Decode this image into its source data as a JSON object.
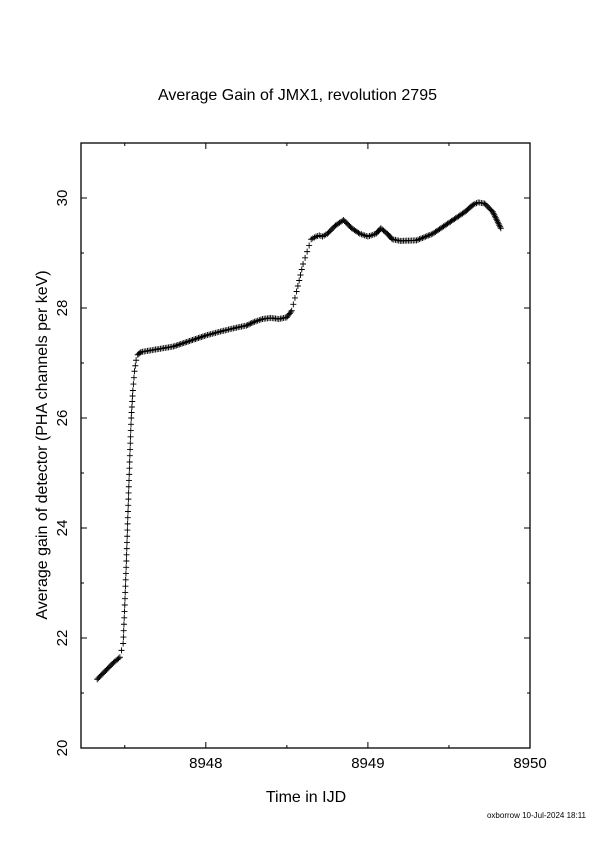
{
  "chart_data": {
    "type": "scatter",
    "title": "Average Gain of JMX1, revolution 2795",
    "xlabel": "Time in IJD",
    "ylabel": "Average gain of detector (PHA channels per keV)",
    "xlim": [
      8947.23,
      8950
    ],
    "ylim": [
      20,
      31
    ],
    "x_ticks": [
      8948,
      8949,
      8950
    ],
    "y_ticks": [
      20,
      22,
      24,
      26,
      28,
      30
    ],
    "grid": false,
    "legend": "none",
    "marker": "+",
    "series": [
      {
        "color": "#000000",
        "x": [
          8947.33,
          8947.38,
          8947.43,
          8947.47,
          8947.49,
          8947.5,
          8947.51,
          8947.52,
          8947.53,
          8947.54,
          8947.55,
          8947.56,
          8947.57,
          8947.58,
          8947.6,
          8947.7,
          8947.8,
          8947.9,
          8948.0,
          8948.1,
          8948.2,
          8948.25,
          8948.3,
          8948.35,
          8948.4,
          8948.45,
          8948.5,
          8948.53,
          8948.56,
          8948.6,
          8948.65,
          8948.68,
          8948.7,
          8948.72,
          8948.75,
          8948.8,
          8948.85,
          8948.9,
          8948.95,
          8949.0,
          8949.05,
          8949.08,
          8949.12,
          8949.15,
          8949.2,
          8949.3,
          8949.4,
          8949.5,
          8949.6,
          8949.65,
          8949.68,
          8949.72,
          8949.77,
          8949.82
        ],
        "y": [
          21.25,
          21.4,
          21.55,
          21.65,
          21.9,
          22.6,
          23.4,
          24.3,
          25.2,
          26.0,
          26.5,
          26.85,
          27.05,
          27.15,
          27.2,
          27.25,
          27.3,
          27.4,
          27.5,
          27.58,
          27.65,
          27.68,
          27.75,
          27.8,
          27.82,
          27.8,
          27.83,
          27.95,
          28.3,
          28.8,
          29.25,
          29.3,
          29.32,
          29.3,
          29.35,
          29.5,
          29.6,
          29.45,
          29.35,
          29.3,
          29.35,
          29.45,
          29.35,
          29.25,
          29.22,
          29.23,
          29.35,
          29.55,
          29.75,
          29.88,
          29.92,
          29.9,
          29.75,
          29.45
        ]
      }
    ]
  },
  "footer_stamp": "oxborrow 10-Jul-2024 18:11"
}
